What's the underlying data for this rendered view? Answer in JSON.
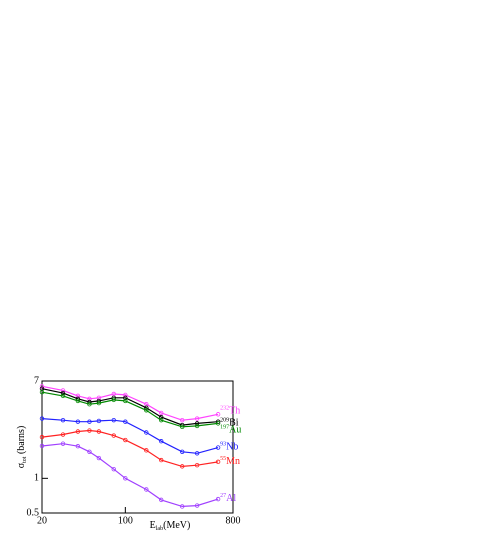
{
  "chart_data": {
    "type": "line",
    "x_label": "E",
    "x_label_sub": "lab",
    "x_label_unit": "(MeV)",
    "y_label": "σ",
    "y_label_sub": "tot",
    "y_label_unit": " (barns)",
    "log_x": true,
    "log_y": true,
    "xlim": [
      20,
      800
    ],
    "ylim": [
      0.5,
      7
    ],
    "xticks": [
      20,
      100,
      800
    ],
    "yticks": [
      0.5,
      1,
      7
    ],
    "x": [
      20,
      30,
      40,
      50,
      60,
      80,
      100,
      150,
      200,
      300,
      400,
      600
    ],
    "series": [
      {
        "name": "Th",
        "mass": "232",
        "color": "#ff44ff",
        "values": [
          6.3,
          5.8,
          5.2,
          4.9,
          5.0,
          5.4,
          5.3,
          4.4,
          3.7,
          3.2,
          3.3,
          3.6
        ]
      },
      {
        "name": "Bi",
        "mass": "209",
        "color": "#000000",
        "values": [
          6.0,
          5.5,
          4.9,
          4.6,
          4.7,
          5.0,
          5.0,
          4.1,
          3.4,
          2.9,
          3.0,
          3.1
        ]
      },
      {
        "name": "Au",
        "mass": "197",
        "color": "#008800",
        "values": [
          5.6,
          5.2,
          4.7,
          4.4,
          4.5,
          4.8,
          4.7,
          3.9,
          3.2,
          2.8,
          2.85,
          3.0
        ]
      },
      {
        "name": "Nb",
        "mass": "93",
        "color": "#2222ff",
        "values": [
          3.3,
          3.2,
          3.1,
          3.1,
          3.15,
          3.2,
          3.1,
          2.5,
          2.1,
          1.7,
          1.65,
          1.85
        ]
      },
      {
        "name": "Mn",
        "mass": "55",
        "color": "#ff2222",
        "values": [
          2.28,
          2.4,
          2.55,
          2.6,
          2.55,
          2.35,
          2.15,
          1.75,
          1.44,
          1.27,
          1.3,
          1.39
        ]
      },
      {
        "name": "Al",
        "mass": "27",
        "color": "#a040ff",
        "values": [
          1.91,
          2.0,
          1.9,
          1.7,
          1.5,
          1.2,
          1.0,
          0.8,
          0.65,
          0.57,
          0.58,
          0.66
        ]
      }
    ]
  }
}
